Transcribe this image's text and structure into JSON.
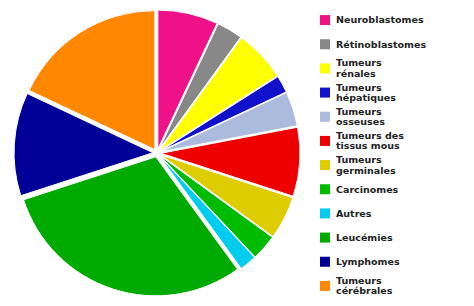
{
  "chart_data": {
    "type": "pie",
    "categories": [
      "Neuroblastomes",
      "Rétinoblastomes",
      "Tumeurs\nrénales",
      "Tumeurs\nhépatiques",
      "Tumeurs\nosseuses",
      "Tumeurs des\ntissus mous",
      "Tumeurs\ngerminales",
      "Carcinomes",
      "Autres",
      "Leucémies",
      "Lymphomes",
      "Tumeurs\ncérébrales"
    ],
    "values": [
      7,
      3,
      6,
      2,
      4,
      8,
      5,
      3,
      2,
      30,
      12,
      18
    ],
    "colors": [
      "#EE1188",
      "#888888",
      "#FFFF00",
      "#1111CC",
      "#AABBDD",
      "#EE0000",
      "#DDCC00",
      "#00BB00",
      "#00CCEE",
      "#00AA00",
      "#000099",
      "#FF8800"
    ],
    "legend": "right"
  }
}
